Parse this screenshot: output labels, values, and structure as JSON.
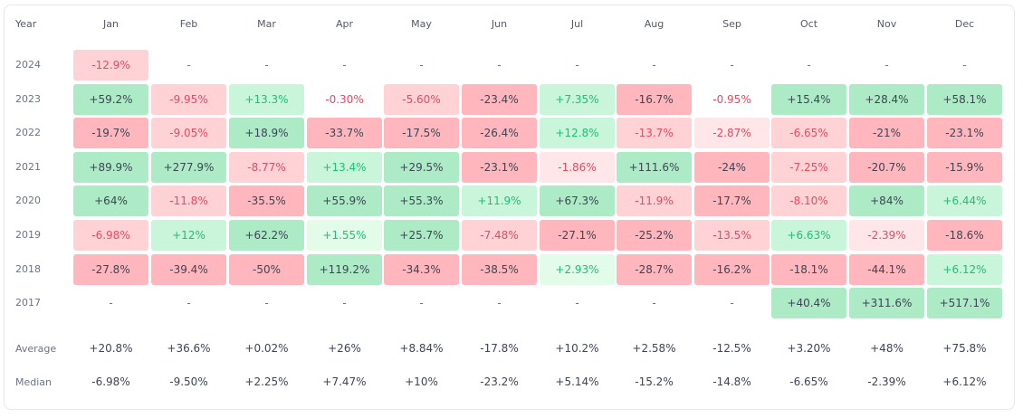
{
  "headers": {
    "year": "Year",
    "months": [
      "Jan",
      "Feb",
      "Mar",
      "Apr",
      "May",
      "Jun",
      "Jul",
      "Aug",
      "Sep",
      "Oct",
      "Nov",
      "Dec"
    ]
  },
  "rows": [
    {
      "year": "2024",
      "cells": [
        {
          "v": "-12.9%",
          "t": "neg1"
        },
        {
          "v": "-",
          "t": "dash"
        },
        {
          "v": "-",
          "t": "dash"
        },
        {
          "v": "-",
          "t": "dash"
        },
        {
          "v": "-",
          "t": "dash"
        },
        {
          "v": "-",
          "t": "dash"
        },
        {
          "v": "-",
          "t": "dash"
        },
        {
          "v": "-",
          "t": "dash"
        },
        {
          "v": "-",
          "t": "dash"
        },
        {
          "v": "-",
          "t": "dash"
        },
        {
          "v": "-",
          "t": "dash"
        },
        {
          "v": "-",
          "t": "dash"
        }
      ]
    },
    {
      "year": "2023",
      "cells": [
        {
          "v": "+59.2%",
          "t": "pos2"
        },
        {
          "v": "-9.95%",
          "t": "neg1"
        },
        {
          "v": "+13.3%",
          "t": "pos1"
        },
        {
          "v": "-0.30%",
          "t": "plain-neg"
        },
        {
          "v": "-5.60%",
          "t": "neg1"
        },
        {
          "v": "-23.4%",
          "t": "neg2"
        },
        {
          "v": "+7.35%",
          "t": "pos1"
        },
        {
          "v": "-16.7%",
          "t": "neg2"
        },
        {
          "v": "-0.95%",
          "t": "plain-neg"
        },
        {
          "v": "+15.4%",
          "t": "pos2"
        },
        {
          "v": "+28.4%",
          "t": "pos2"
        },
        {
          "v": "+58.1%",
          "t": "pos2"
        }
      ]
    },
    {
      "year": "2022",
      "cells": [
        {
          "v": "-19.7%",
          "t": "neg2"
        },
        {
          "v": "-9.05%",
          "t": "neg1"
        },
        {
          "v": "+18.9%",
          "t": "pos2"
        },
        {
          "v": "-33.7%",
          "t": "neg2"
        },
        {
          "v": "-17.5%",
          "t": "neg2"
        },
        {
          "v": "-26.4%",
          "t": "neg2"
        },
        {
          "v": "+12.8%",
          "t": "pos1"
        },
        {
          "v": "-13.7%",
          "t": "neg1"
        },
        {
          "v": "-2.87%",
          "t": "negL"
        },
        {
          "v": "-6.65%",
          "t": "neg1"
        },
        {
          "v": "-21%",
          "t": "neg2"
        },
        {
          "v": "-23.1%",
          "t": "neg2"
        }
      ]
    },
    {
      "year": "2021",
      "cells": [
        {
          "v": "+89.9%",
          "t": "pos2"
        },
        {
          "v": "+277.9%",
          "t": "pos2"
        },
        {
          "v": "-8.77%",
          "t": "neg1"
        },
        {
          "v": "+13.4%",
          "t": "pos1"
        },
        {
          "v": "+29.5%",
          "t": "pos2"
        },
        {
          "v": "-23.1%",
          "t": "neg2"
        },
        {
          "v": "-1.86%",
          "t": "negL"
        },
        {
          "v": "+111.6%",
          "t": "pos2"
        },
        {
          "v": "-24%",
          "t": "neg2"
        },
        {
          "v": "-7.25%",
          "t": "neg1"
        },
        {
          "v": "-20.7%",
          "t": "neg2"
        },
        {
          "v": "-15.9%",
          "t": "neg2"
        }
      ]
    },
    {
      "year": "2020",
      "cells": [
        {
          "v": "+64%",
          "t": "pos2"
        },
        {
          "v": "-11.8%",
          "t": "neg1"
        },
        {
          "v": "-35.5%",
          "t": "neg2"
        },
        {
          "v": "+55.9%",
          "t": "pos2"
        },
        {
          "v": "+55.3%",
          "t": "pos2"
        },
        {
          "v": "+11.9%",
          "t": "pos1"
        },
        {
          "v": "+67.3%",
          "t": "pos2"
        },
        {
          "v": "-11.9%",
          "t": "neg1"
        },
        {
          "v": "-17.7%",
          "t": "neg2"
        },
        {
          "v": "-8.10%",
          "t": "neg1"
        },
        {
          "v": "+84%",
          "t": "pos2"
        },
        {
          "v": "+6.44%",
          "t": "pos1"
        }
      ]
    },
    {
      "year": "2019",
      "cells": [
        {
          "v": "-6.98%",
          "t": "neg1"
        },
        {
          "v": "+12%",
          "t": "pos1"
        },
        {
          "v": "+62.2%",
          "t": "pos2"
        },
        {
          "v": "+1.55%",
          "t": "posL"
        },
        {
          "v": "+25.7%",
          "t": "pos2"
        },
        {
          "v": "-7.48%",
          "t": "neg1"
        },
        {
          "v": "-27.1%",
          "t": "neg2"
        },
        {
          "v": "-25.2%",
          "t": "neg2"
        },
        {
          "v": "-13.5%",
          "t": "neg1"
        },
        {
          "v": "+6.63%",
          "t": "pos1"
        },
        {
          "v": "-2.39%",
          "t": "negL"
        },
        {
          "v": "-18.6%",
          "t": "neg2"
        }
      ]
    },
    {
      "year": "2018",
      "cells": [
        {
          "v": "-27.8%",
          "t": "neg2"
        },
        {
          "v": "-39.4%",
          "t": "neg2"
        },
        {
          "v": "-50%",
          "t": "neg2"
        },
        {
          "v": "+119.2%",
          "t": "pos2"
        },
        {
          "v": "-34.3%",
          "t": "neg2"
        },
        {
          "v": "-38.5%",
          "t": "neg2"
        },
        {
          "v": "+2.93%",
          "t": "posL"
        },
        {
          "v": "-28.7%",
          "t": "neg2"
        },
        {
          "v": "-16.2%",
          "t": "neg2"
        },
        {
          "v": "-18.1%",
          "t": "neg2"
        },
        {
          "v": "-44.1%",
          "t": "neg2"
        },
        {
          "v": "+6.12%",
          "t": "pos1"
        }
      ]
    },
    {
      "year": "2017",
      "cells": [
        {
          "v": "-",
          "t": "dash"
        },
        {
          "v": "-",
          "t": "dash"
        },
        {
          "v": "-",
          "t": "dash"
        },
        {
          "v": "-",
          "t": "dash"
        },
        {
          "v": "-",
          "t": "dash"
        },
        {
          "v": "-",
          "t": "dash"
        },
        {
          "v": "-",
          "t": "dash"
        },
        {
          "v": "-",
          "t": "dash"
        },
        {
          "v": "-",
          "t": "dash"
        },
        {
          "v": "+40.4%",
          "t": "pos2"
        },
        {
          "v": "+311.6%",
          "t": "pos2"
        },
        {
          "v": "+517.1%",
          "t": "pos2"
        }
      ]
    }
  ],
  "stats": [
    {
      "label": "Average",
      "values": [
        "+20.8%",
        "+36.6%",
        "+0.02%",
        "+26%",
        "+8.84%",
        "-17.8%",
        "+10.2%",
        "+2.58%",
        "-12.5%",
        "+3.20%",
        "+48%",
        "+75.8%"
      ]
    },
    {
      "label": "Median",
      "values": [
        "-6.98%",
        "-9.50%",
        "+2.25%",
        "+7.47%",
        "+10%",
        "-23.2%",
        "+5.14%",
        "-15.2%",
        "-14.8%",
        "-6.65%",
        "-2.39%",
        "+6.12%"
      ]
    }
  ]
}
